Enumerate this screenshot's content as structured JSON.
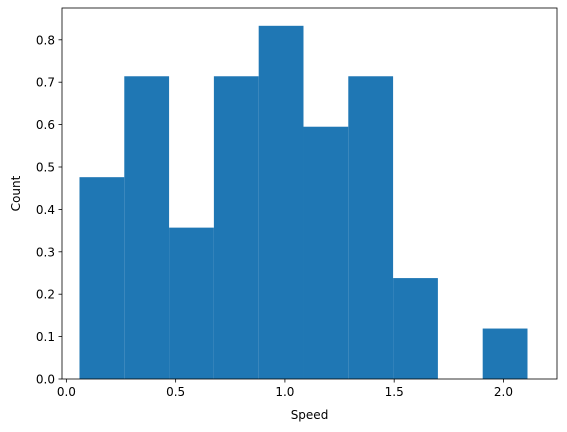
{
  "chart_data": {
    "type": "bar",
    "bar_style": "histogram",
    "title": "",
    "xlabel": "Speed",
    "ylabel": "Count",
    "xlim": [
      -0.02,
      2.245
    ],
    "ylim": [
      0,
      0.875
    ],
    "xticks": [
      0.0,
      0.5,
      1.0,
      1.5,
      2.0
    ],
    "xtick_labels": [
      "0.0",
      "0.5",
      "1.0",
      "1.5",
      "2.0"
    ],
    "yticks": [
      0.0,
      0.1,
      0.2,
      0.3,
      0.4,
      0.5,
      0.6,
      0.7,
      0.8
    ],
    "ytick_labels": [
      "0.0",
      "0.1",
      "0.2",
      "0.3",
      "0.4",
      "0.5",
      "0.6",
      "0.7",
      "0.8"
    ],
    "bin_edges": [
      0.06,
      0.265,
      0.47,
      0.675,
      0.88,
      1.085,
      1.29,
      1.495,
      1.7,
      1.905,
      2.11
    ],
    "values": [
      0.476,
      0.714,
      0.357,
      0.714,
      0.833,
      0.595,
      0.714,
      0.238,
      0.0,
      0.119
    ],
    "bar_color": "#1f77b4",
    "grid": false,
    "legend": "none"
  }
}
